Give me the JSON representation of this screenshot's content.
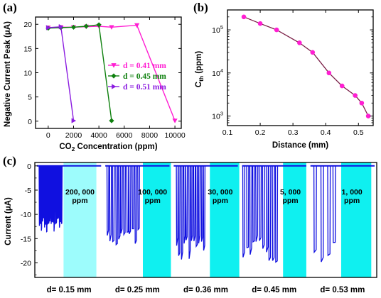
{
  "chart_data": [
    {
      "panel": "(a)",
      "type": "line",
      "xlabel": "CO2 Concentration (ppm)",
      "ylabel": "Negative Current Peak (μA)",
      "xlim": [
        -1000,
        10500
      ],
      "ylim": [
        -1.5,
        21.5
      ],
      "xticks": [
        "0",
        "2000",
        "4000",
        "6000",
        "8000",
        "10000"
      ],
      "yticks": [
        "0",
        "5",
        "10",
        "15",
        "20"
      ],
      "legend_position": "right",
      "series": [
        {
          "name": "d = 0.41 mm",
          "color": "#ff1ed2",
          "marker": "triangle-down",
          "x": [
            0,
            1000,
            2000,
            3000,
            4000,
            5000,
            7000,
            10000
          ],
          "y": [
            19.3,
            19.4,
            19.4,
            19.5,
            19.6,
            19.4,
            19.8,
            0.1
          ]
        },
        {
          "name": "d = 0.45 mm",
          "color": "#0e800e",
          "marker": "diamond",
          "x": [
            0,
            1000,
            2000,
            3000,
            4000,
            5000
          ],
          "y": [
            19.2,
            19.3,
            19.4,
            19.6,
            19.9,
            0.1
          ]
        },
        {
          "name": "d = 0.51 mm",
          "color": "#8b1ce0",
          "marker": "triangle-right",
          "x": [
            0,
            1000,
            2000
          ],
          "y": [
            19.3,
            19.5,
            0.1
          ]
        }
      ]
    },
    {
      "panel": "(b)",
      "type": "line",
      "xlabel": "Distance (mm)",
      "ylabel_main": "C",
      "ylabel_sub": "th",
      "ylabel_tail": " (ppm)",
      "yscale": "log",
      "xlim": [
        0.1,
        0.545
      ],
      "ylim": [
        600,
        290000
      ],
      "xticks": [
        "0.1",
        "0.2",
        "0.3",
        "0.4",
        "0.5"
      ],
      "ytick_base": "10",
      "ytick_exps": [
        "3",
        "4",
        "5"
      ],
      "marker_color": "#ff1ed2",
      "line_color": "#7a1e46",
      "x": [
        0.15,
        0.2,
        0.25,
        0.32,
        0.36,
        0.41,
        0.45,
        0.49,
        0.51,
        0.53
      ],
      "y": [
        200000,
        140000,
        100000,
        50000,
        30000,
        10000,
        5000,
        3000,
        2000,
        1000
      ]
    },
    {
      "panel": "(c)",
      "type": "line",
      "ylabel": "Current (μA)",
      "ylim": [
        -23,
        0.7
      ],
      "yticks": [
        "-20",
        "-15",
        "-10",
        "-5",
        "0"
      ],
      "trace_color": "#1010e0",
      "segments": [
        {
          "distance_label": "d= 0.15 mm",
          "annotation": [
            "200, 000",
            "ppm"
          ],
          "highlight": "#9dfcfc",
          "spike_depth": -13.5
        },
        {
          "distance_label": "d= 0.25 mm",
          "annotation": [
            "100, 000",
            "ppm"
          ],
          "highlight": "#0ff0f0",
          "spike_depth": -16.2
        },
        {
          "distance_label": "d= 0.36 mm",
          "annotation": [
            "30, 000",
            "ppm"
          ],
          "highlight": "#0ff0f0",
          "spike_depth": -19.5
        },
        {
          "distance_label": "d= 0.45 mm",
          "annotation": [
            "5, 000",
            "ppm"
          ],
          "highlight": "#0ff0f0",
          "spike_depth": -19.6
        },
        {
          "distance_label": "d= 0.53 mm",
          "annotation": [
            "1, 000",
            "ppm"
          ],
          "highlight": "#0ff0f0",
          "spike_depth": -19.8
        }
      ]
    }
  ],
  "figure": {
    "label_a": "(a)",
    "label_b": "(b)",
    "label_c": "(c)"
  }
}
